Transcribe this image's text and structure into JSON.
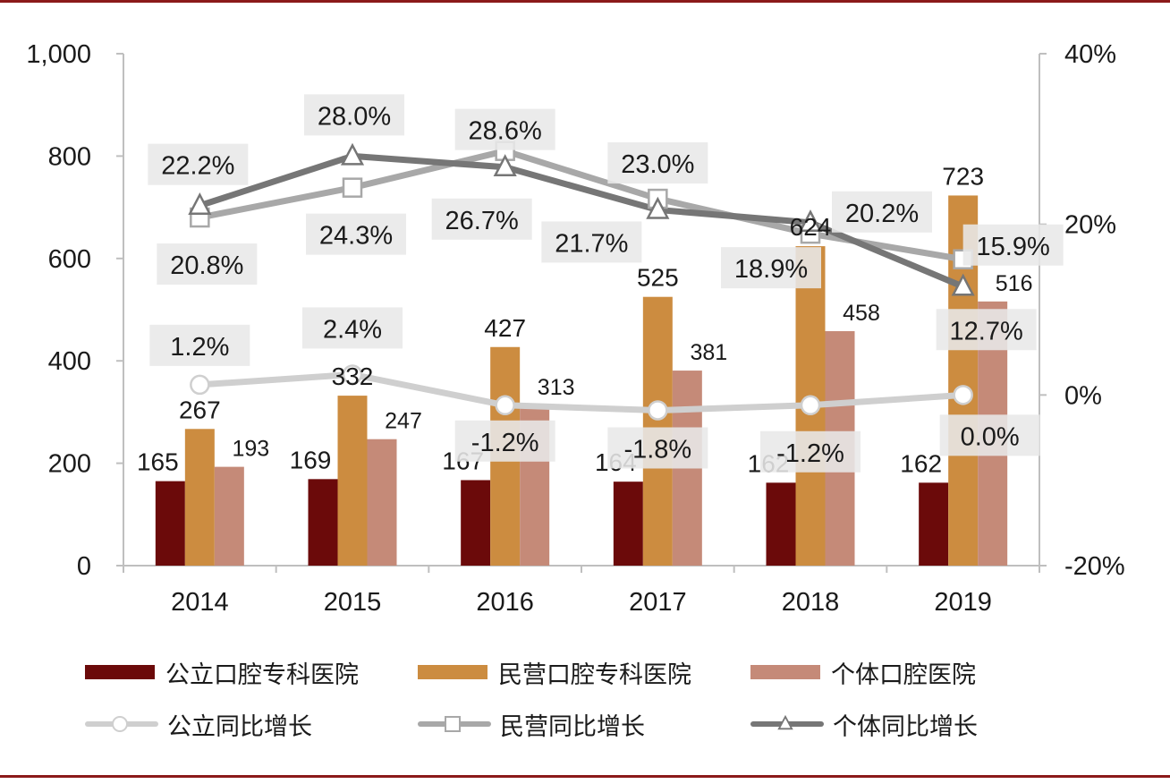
{
  "chart_data": {
    "type": "bar",
    "categories": [
      "2014",
      "2015",
      "2016",
      "2017",
      "2018",
      "2019"
    ],
    "y_left": {
      "ylim": [
        0,
        1000
      ],
      "ticks": [
        "0",
        "200",
        "400",
        "600",
        "800",
        "1,000"
      ],
      "tick_values": [
        0,
        200,
        400,
        600,
        800,
        1000
      ]
    },
    "y_right": {
      "ylim": [
        -20,
        40
      ],
      "ticks": [
        "-20%",
        "0%",
        "20%",
        "40%"
      ],
      "tick_values": [
        -20,
        0,
        20,
        40
      ]
    },
    "bar_series": [
      {
        "name": "公立口腔专科医院",
        "color": "#6b0a0a",
        "values": [
          165,
          169,
          167,
          164,
          162,
          162
        ],
        "labels": [
          "165",
          "169",
          "167",
          "164",
          "162",
          "162"
        ]
      },
      {
        "name": "民营口腔专科医院",
        "color": "#cc8c40",
        "values": [
          267,
          332,
          427,
          525,
          624,
          723
        ],
        "labels": [
          "267",
          "332",
          "427",
          "525",
          "624",
          "723"
        ]
      },
      {
        "name": "个体口腔医院",
        "color": "#c58a78",
        "values": [
          193,
          247,
          313,
          381,
          458,
          516
        ],
        "labels": [
          "193",
          "247",
          "313",
          "381",
          "458",
          "516"
        ]
      }
    ],
    "line_series": [
      {
        "name": "公立同比增长",
        "marker": "circle",
        "color": "#cfcfcf",
        "values": [
          1.2,
          2.4,
          -1.2,
          -1.8,
          -1.2,
          0.0
        ],
        "labels": [
          "1.2%",
          "2.4%",
          "-1.2%",
          "-1.8%",
          "-1.2%",
          "0.0%"
        ]
      },
      {
        "name": "民营同比增长",
        "marker": "square",
        "color": "#a8a8a8",
        "values": [
          20.8,
          24.3,
          28.6,
          23.0,
          18.9,
          15.9
        ],
        "labels": [
          "20.8%",
          "24.3%",
          "28.6%",
          "23.0%",
          "18.9%",
          "15.9%"
        ]
      },
      {
        "name": "个体同比增长",
        "marker": "triangle",
        "color": "#767676",
        "values": [
          22.2,
          28.0,
          26.7,
          21.7,
          20.2,
          12.7
        ],
        "labels": [
          "22.2%",
          "28.0%",
          "26.7%",
          "21.7%",
          "20.2%",
          "12.7%"
        ]
      }
    ],
    "legend_position": "bottom",
    "grid": false
  }
}
